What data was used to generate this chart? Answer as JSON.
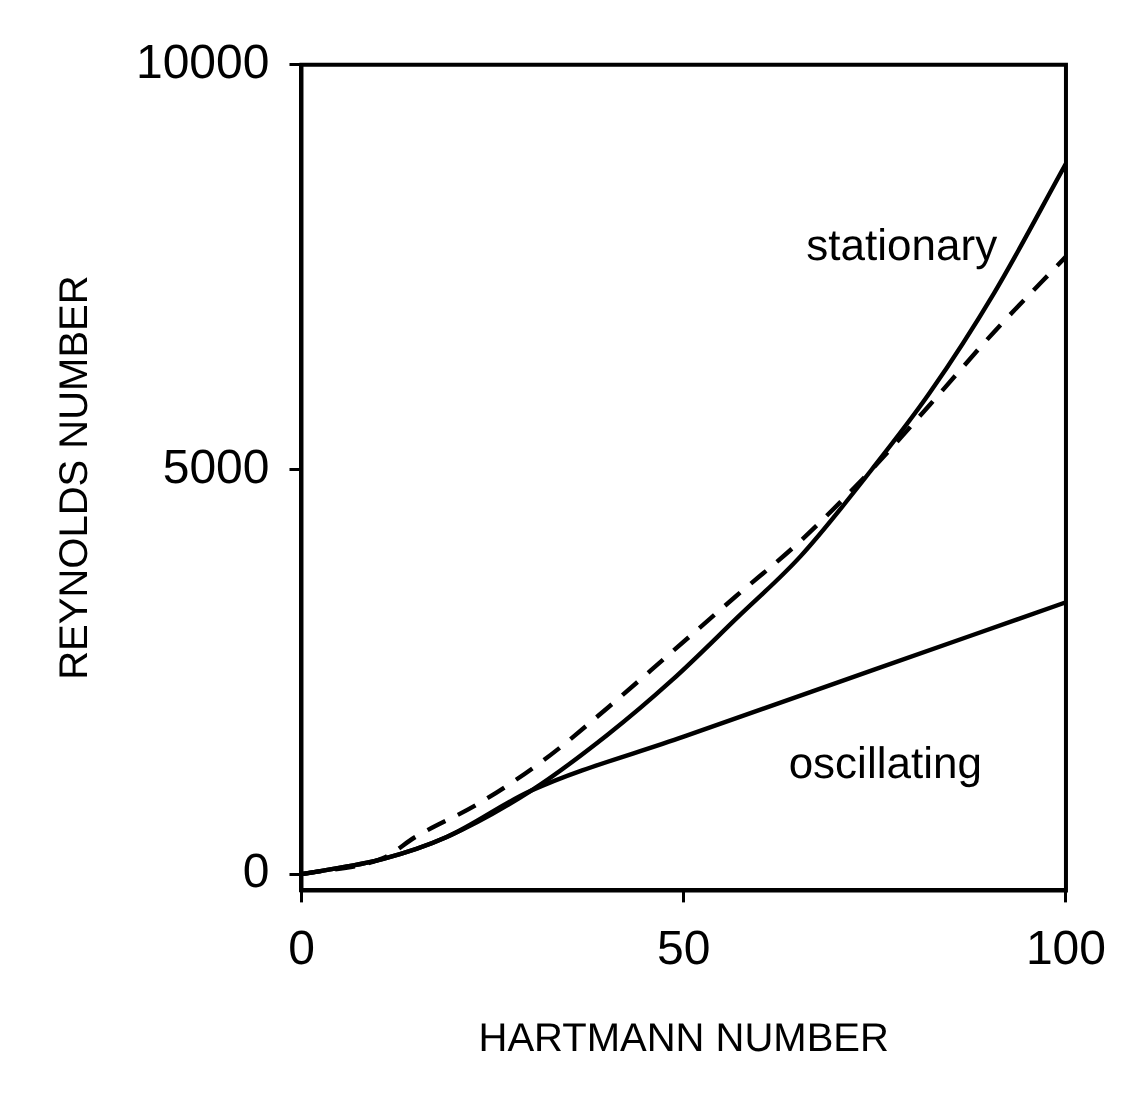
{
  "chart_data": {
    "type": "line",
    "xlabel": "HARTMANN NUMBER",
    "ylabel": "REYNOLDS NUMBER",
    "xlim": [
      0,
      100
    ],
    "xticks": [
      0,
      50,
      100
    ],
    "ylim": [
      -200,
      10000
    ],
    "yticks": [
      0,
      5000,
      10000
    ],
    "grid": false,
    "legend": false,
    "marker": "none",
    "series": [
      {
        "name": "stationary",
        "color": "#000000",
        "line_style": "solid",
        "x": [
          0,
          10.7,
          19,
          30,
          40,
          48.5,
          57,
          65.3,
          74.6,
          82.2,
          90.6,
          100
        ],
        "values": [
          0,
          190,
          460,
          1030,
          1720,
          2400,
          3170,
          3930,
          5000,
          5950,
          7180,
          8780
        ]
      },
      {
        "color": "#000000",
        "line_style": "dashed",
        "x": [
          0,
          10.7,
          14.9,
          23.3,
          31.7,
          40.1,
          48.5,
          56.9,
          65.3,
          74.6,
          82.2,
          90.6,
          100
        ],
        "values": [
          0,
          200,
          460,
          880,
          1410,
          2060,
          2750,
          3440,
          4120,
          5000,
          5800,
          6700,
          7630
        ]
      },
      {
        "name": "oscillating",
        "color": "#000000",
        "line_style": "solid",
        "x": [
          0,
          10.7,
          19,
          30,
          50,
          75,
          100
        ],
        "values": [
          0,
          190,
          460,
          1030,
          1700,
          2530,
          3360
        ]
      }
    ]
  }
}
